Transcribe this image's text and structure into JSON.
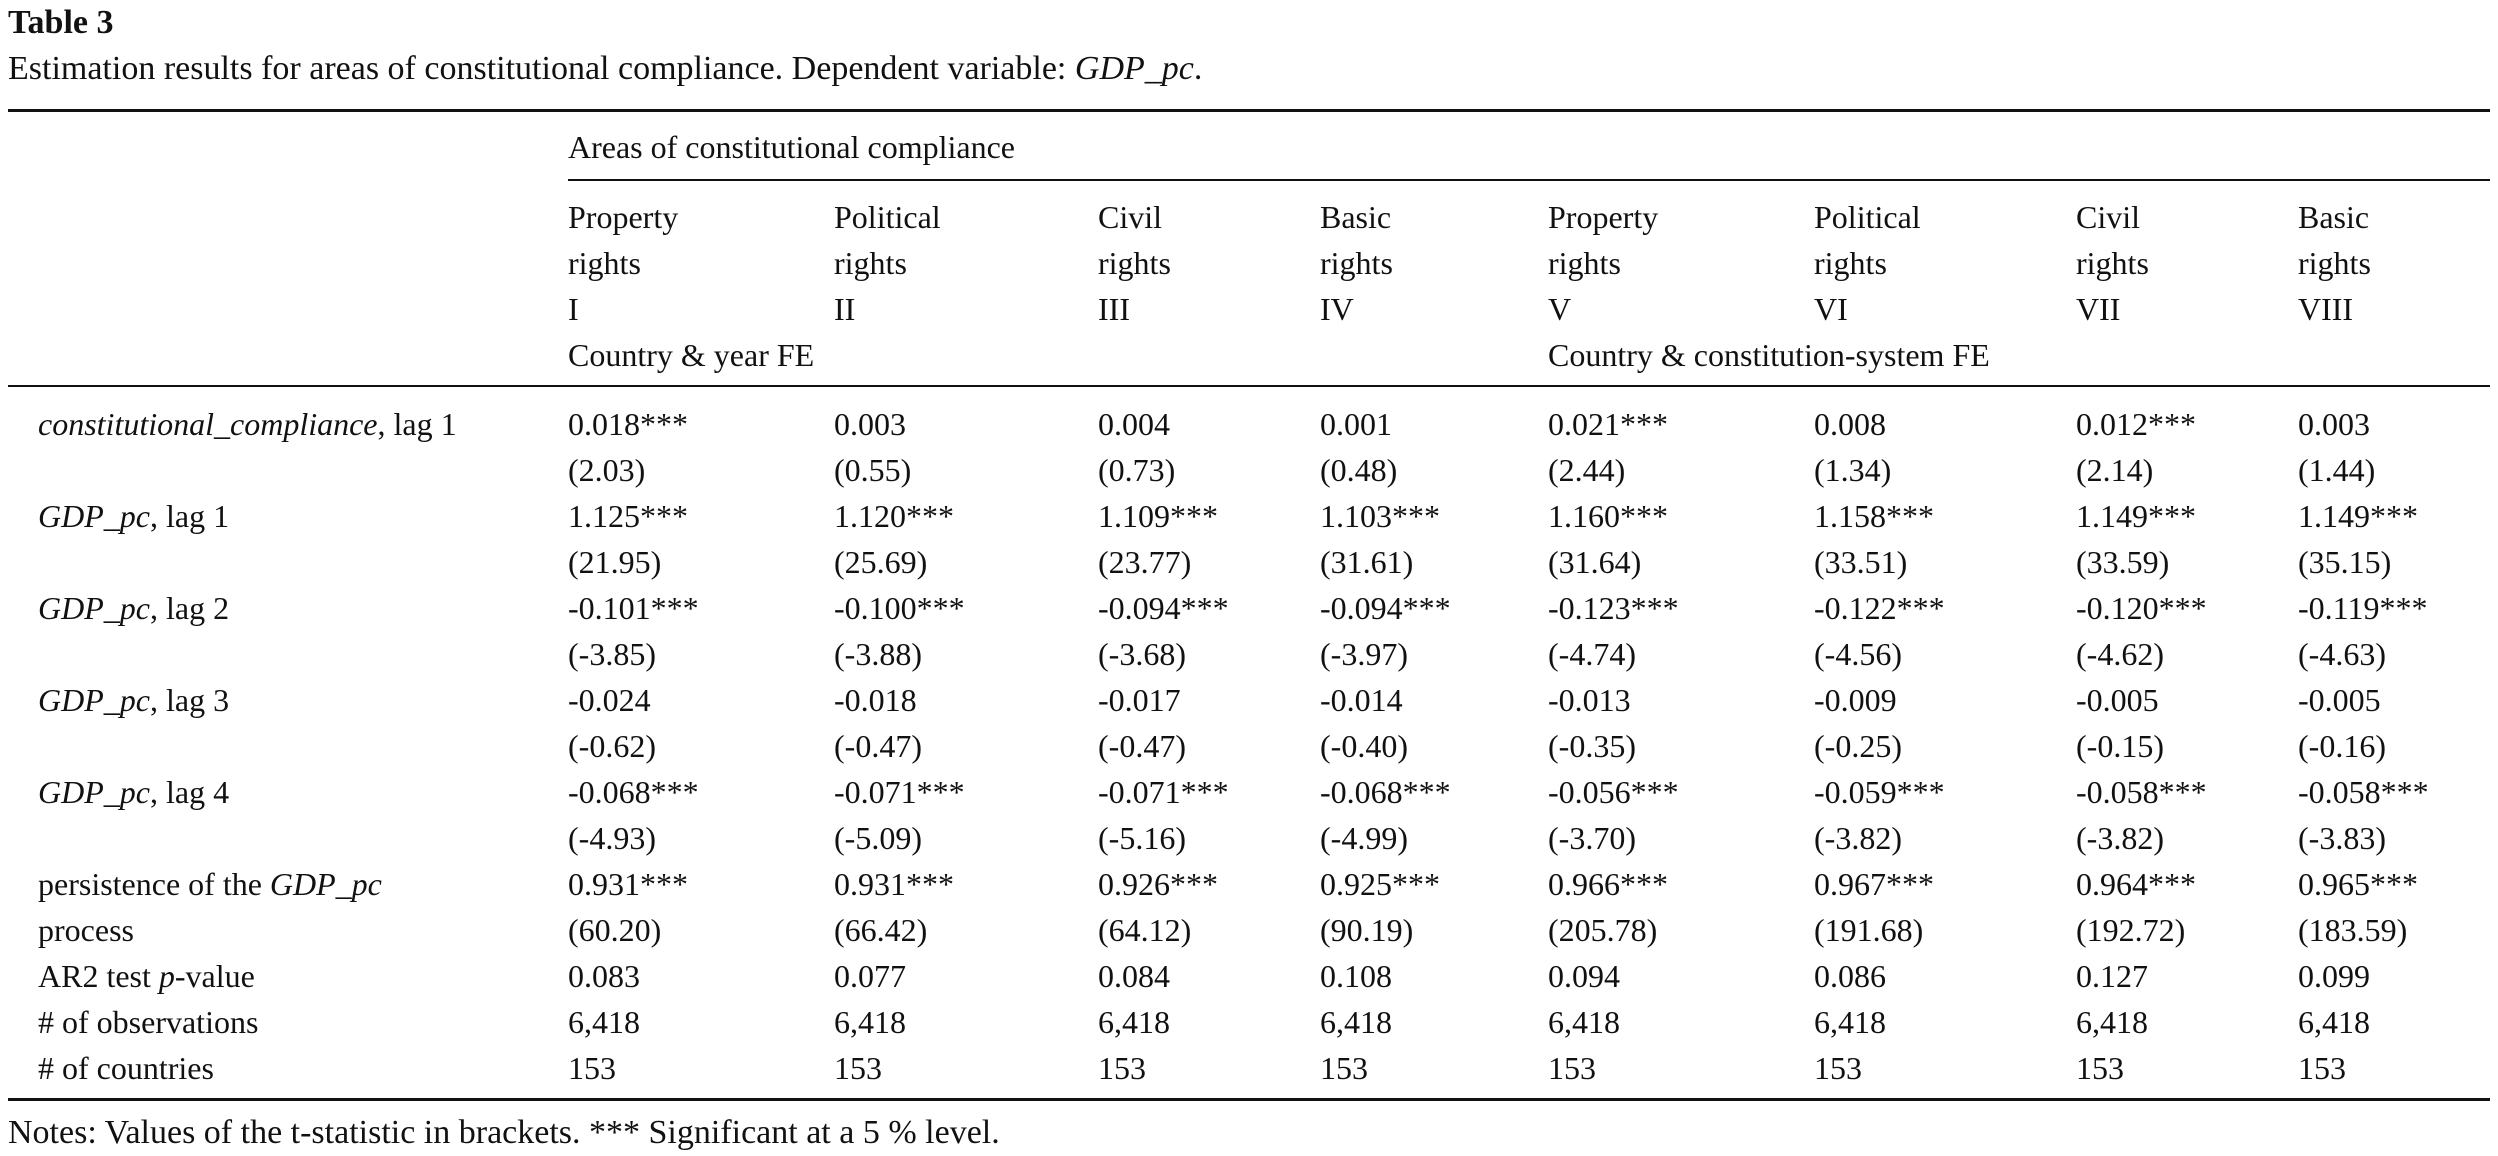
{
  "title": "Table 3",
  "caption": {
    "text": "Estimation results for areas of constitutional compliance. Dependent variable: ",
    "dep_var": "GDP_pc",
    "end": "."
  },
  "header": {
    "group_label": "Areas of constitutional compliance",
    "columns": [
      {
        "line1": "Property",
        "line2": "rights",
        "numeral": "I"
      },
      {
        "line1": "Political",
        "line2": "rights",
        "numeral": "II"
      },
      {
        "line1": "Civil",
        "line2": "rights",
        "numeral": "III"
      },
      {
        "line1": "Basic",
        "line2": "rights",
        "numeral": "IV"
      },
      {
        "line1": "Property",
        "line2": "rights",
        "numeral": "V"
      },
      {
        "line1": "Political",
        "line2": "rights",
        "numeral": "VI"
      },
      {
        "line1": "Civil",
        "line2": "rights",
        "numeral": "VII"
      },
      {
        "line1": "Basic",
        "line2": "rights",
        "numeral": "VIII"
      }
    ],
    "fe_left": "Country & year FE",
    "fe_right": "Country & constitution-system FE"
  },
  "rows": [
    {
      "label_it": "constitutional_compliance",
      "label_rest": ", lag 1",
      "values": [
        "0.018***",
        "0.003",
        "0.004",
        "0.001",
        "0.021***",
        "0.008",
        "0.012***",
        "0.003"
      ],
      "tstats": [
        "(2.03)",
        "(0.55)",
        "(0.73)",
        "(0.48)",
        "(2.44)",
        "(1.34)",
        "(2.14)",
        "(1.44)"
      ]
    },
    {
      "label_it": "GDP_pc",
      "label_rest": ", lag 1",
      "values": [
        "1.125***",
        "1.120***",
        "1.109***",
        "1.103***",
        "1.160***",
        "1.158***",
        "1.149***",
        "1.149***"
      ],
      "tstats": [
        "(21.95)",
        "(25.69)",
        "(23.77)",
        "(31.61)",
        "(31.64)",
        "(33.51)",
        "(33.59)",
        "(35.15)"
      ]
    },
    {
      "label_it": "GDP_pc",
      "label_rest": ", lag 2",
      "values": [
        "-0.101***",
        "-0.100***",
        "-0.094***",
        "-0.094***",
        "-0.123***",
        "-0.122***",
        "-0.120***",
        "-0.119***"
      ],
      "tstats": [
        "(-3.85)",
        "(-3.88)",
        "(-3.68)",
        "(-3.97)",
        "(-4.74)",
        "(-4.56)",
        "(-4.62)",
        "(-4.63)"
      ]
    },
    {
      "label_it": "GDP_pc",
      "label_rest": ", lag 3",
      "values": [
        "-0.024",
        "-0.018",
        "-0.017",
        "-0.014",
        "-0.013",
        "-0.009",
        "-0.005",
        "-0.005"
      ],
      "tstats": [
        "(-0.62)",
        "(-0.47)",
        "(-0.47)",
        "(-0.40)",
        "(-0.35)",
        "(-0.25)",
        "(-0.15)",
        "(-0.16)"
      ]
    },
    {
      "label_it": "GDP_pc",
      "label_rest": ", lag 4",
      "values": [
        "-0.068***",
        "-0.071***",
        "-0.071***",
        "-0.068***",
        "-0.056***",
        "-0.059***",
        "-0.058***",
        "-0.058***"
      ],
      "tstats": [
        "(-4.93)",
        "(-5.09)",
        "(-5.16)",
        "(-4.99)",
        "(-3.70)",
        "(-3.82)",
        "(-3.82)",
        "(-3.83)"
      ]
    }
  ],
  "persistence": {
    "label_pre": "persistence of the ",
    "label_it": "GDP_pc",
    "label_line2": "process",
    "values": [
      "0.931***",
      "0.931***",
      "0.926***",
      "0.925***",
      "0.966***",
      "0.967***",
      "0.964***",
      "0.965***"
    ],
    "tstats": [
      "(60.20)",
      "(66.42)",
      "(64.12)",
      "(90.19)",
      "(205.78)",
      "(191.68)",
      "(192.72)",
      "(183.59)"
    ]
  },
  "ar2": {
    "label_pre": "AR2 test ",
    "label_it": "p",
    "label_rest": "-value",
    "values": [
      "0.083",
      "0.077",
      "0.084",
      "0.108",
      "0.094",
      "0.086",
      "0.127",
      "0.099"
    ]
  },
  "observations": {
    "label": "# of observations",
    "values": [
      "6,418",
      "6,418",
      "6,418",
      "6,418",
      "6,418",
      "6,418",
      "6,418",
      "6,418"
    ]
  },
  "countries": {
    "label": "# of countries",
    "values": [
      "153",
      "153",
      "153",
      "153",
      "153",
      "153",
      "153",
      "153"
    ]
  },
  "notes": "Notes: Values of the t-statistic in brackets. *** Significant at a 5 % level."
}
